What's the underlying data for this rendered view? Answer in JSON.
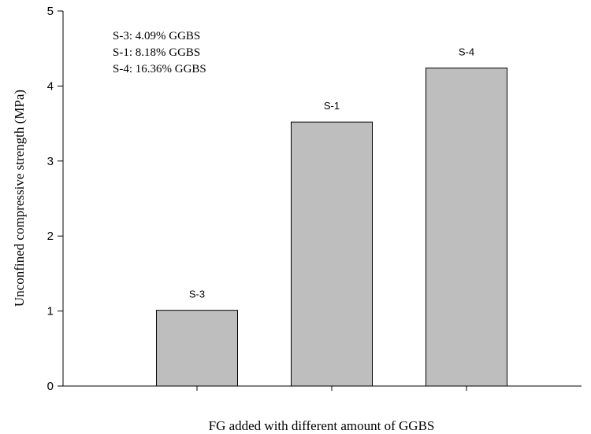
{
  "chart_data": {
    "type": "bar",
    "categories": [
      "S-3",
      "S-1",
      "S-4"
    ],
    "values": [
      1.01,
      3.52,
      4.24
    ],
    "bar_labels": [
      "S-3",
      "S-1",
      "S-4"
    ],
    "xlabel": "FG added with different amount of GGBS",
    "ylabel": "Unconfined compressive strength (MPa)",
    "ylim": [
      0,
      5
    ],
    "yticks": [
      "0",
      "1",
      "2",
      "3",
      "4",
      "5"
    ],
    "annotations": [
      "S-3: 4.09% GGBS",
      "S-1: 8.18% GGBS",
      "S-4: 16.36% GGBS"
    ],
    "grid": false,
    "legend": "none",
    "bar_color": "#bebebe",
    "axis_color": "#000000"
  }
}
